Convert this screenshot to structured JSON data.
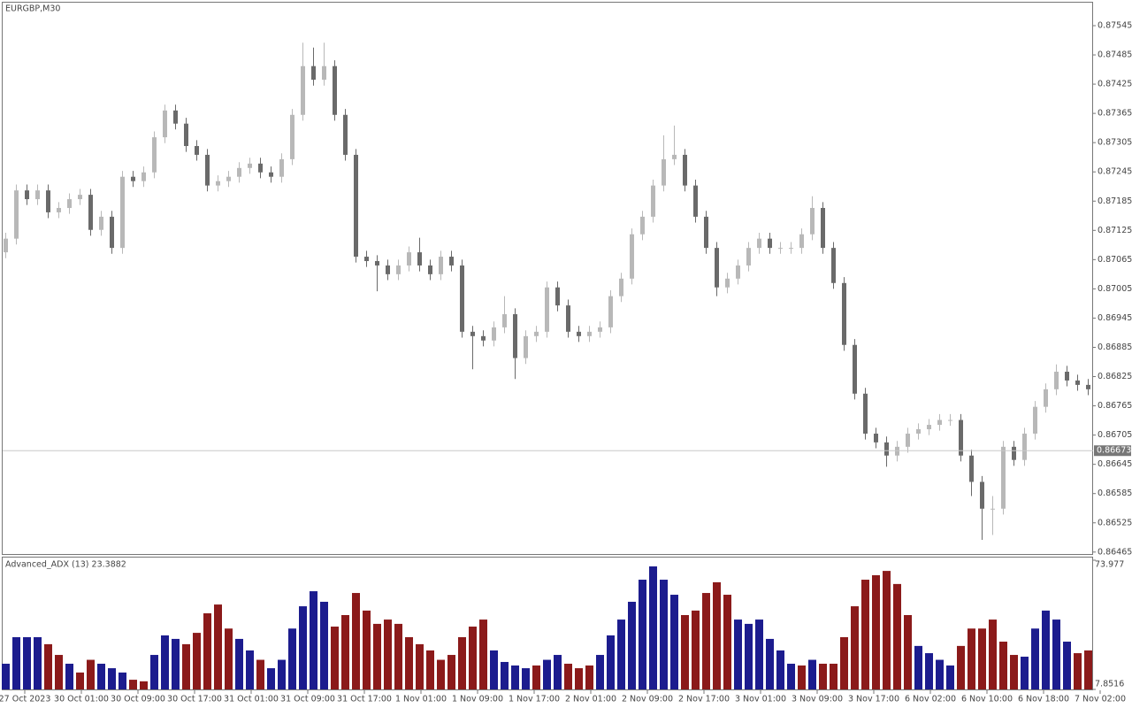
{
  "chart_data": [
    {
      "type": "candlestick",
      "title": "EURGBP,M30",
      "open": [
        0.8708,
        0.87108,
        0.87207,
        0.87189,
        0.87207,
        0.87162,
        0.87171,
        0.87189,
        0.87198,
        0.87126,
        0.87153,
        0.87089,
        0.87235,
        0.87226,
        0.87244,
        0.87316,
        0.87371,
        0.87344,
        0.87298,
        0.8728,
        0.87217,
        0.87226,
        0.87235,
        0.87253,
        0.87262,
        0.87244,
        0.87235,
        0.87271,
        0.87362,
        0.87462,
        0.87434,
        0.87462,
        0.87362,
        0.8728,
        0.87071,
        0.87062,
        0.87053,
        0.87035,
        0.87053,
        0.8708,
        0.87053,
        0.87035,
        0.87071,
        0.87053,
        0.86917,
        0.86908,
        0.86899,
        0.86926,
        0.86953,
        0.86863,
        0.86908,
        0.86917,
        0.87008,
        0.86971,
        0.86917,
        0.86908,
        0.86917,
        0.86926,
        0.8699,
        0.87026,
        0.87117,
        0.87153,
        0.87217,
        0.87271,
        0.8728,
        0.87217,
        0.87153,
        0.87089,
        0.87008,
        0.87026,
        0.87053,
        0.87089,
        0.87108,
        0.87089,
        0.87089,
        0.87089,
        0.87117,
        0.87171,
        0.87089,
        0.87017,
        0.8689,
        0.8679,
        0.86708,
        0.8669,
        0.86663,
        0.86681,
        0.86708,
        0.86717,
        0.86726,
        0.86736,
        0.86736,
        0.86663,
        0.86609,
        0.86554,
        0.86554,
        0.86681,
        0.86654,
        0.86708,
        0.86763,
        0.86799,
        0.86835,
        0.86817,
        0.86808
      ],
      "high": [
        0.8712,
        0.87219,
        0.87219,
        0.87219,
        0.87219,
        0.87183,
        0.87201,
        0.8721,
        0.8721,
        0.87165,
        0.87165,
        0.87247,
        0.87247,
        0.87256,
        0.87328,
        0.87383,
        0.87383,
        0.87356,
        0.8731,
        0.87292,
        0.87238,
        0.87247,
        0.87265,
        0.87274,
        0.87274,
        0.87256,
        0.87283,
        0.87374,
        0.8751,
        0.875,
        0.8751,
        0.87474,
        0.87374,
        0.87292,
        0.87083,
        0.87074,
        0.87065,
        0.87065,
        0.87092,
        0.8711,
        0.87065,
        0.87083,
        0.87083,
        0.87065,
        0.86929,
        0.8692,
        0.86938,
        0.8699,
        0.86965,
        0.8692,
        0.86929,
        0.8702,
        0.8702,
        0.86983,
        0.86929,
        0.86929,
        0.86938,
        0.87002,
        0.87038,
        0.87129,
        0.87165,
        0.87229,
        0.8732,
        0.8734,
        0.87292,
        0.87229,
        0.87165,
        0.87101,
        0.87038,
        0.87065,
        0.87101,
        0.8712,
        0.8712,
        0.87101,
        0.87101,
        0.87129,
        0.87195,
        0.87183,
        0.87101,
        0.87029,
        0.86902,
        0.86802,
        0.8672,
        0.86702,
        0.86693,
        0.8672,
        0.86729,
        0.86738,
        0.86748,
        0.86748,
        0.86748,
        0.86675,
        0.86621,
        0.8658,
        0.86693,
        0.86693,
        0.8672,
        0.86775,
        0.86811,
        0.8685,
        0.86847,
        0.86829,
        0.8682
      ],
      "low": [
        0.87068,
        0.87096,
        0.87177,
        0.87177,
        0.8715,
        0.8715,
        0.87159,
        0.87177,
        0.87114,
        0.87114,
        0.87077,
        0.87077,
        0.87214,
        0.87214,
        0.87232,
        0.87304,
        0.87332,
        0.87286,
        0.87268,
        0.87205,
        0.87205,
        0.87214,
        0.87223,
        0.87241,
        0.87232,
        0.87223,
        0.87223,
        0.87259,
        0.8735,
        0.87422,
        0.87422,
        0.8735,
        0.87268,
        0.87059,
        0.8705,
        0.87,
        0.87023,
        0.87023,
        0.87041,
        0.87041,
        0.87023,
        0.87023,
        0.87041,
        0.86905,
        0.8684,
        0.86887,
        0.86887,
        0.86914,
        0.8682,
        0.86851,
        0.86896,
        0.86905,
        0.86959,
        0.86905,
        0.86896,
        0.86896,
        0.86905,
        0.86914,
        0.86978,
        0.87014,
        0.87105,
        0.87141,
        0.87205,
        0.87259,
        0.87205,
        0.87141,
        0.87077,
        0.8699,
        0.86996,
        0.87014,
        0.87041,
        0.87077,
        0.87077,
        0.87077,
        0.87077,
        0.87077,
        0.87105,
        0.87077,
        0.87005,
        0.86878,
        0.86778,
        0.86696,
        0.86678,
        0.8664,
        0.86651,
        0.86669,
        0.86696,
        0.86705,
        0.86714,
        0.86724,
        0.86651,
        0.8658,
        0.8649,
        0.865,
        0.86542,
        0.86642,
        0.86642,
        0.86696,
        0.86751,
        0.86787,
        0.86805,
        0.86796,
        0.86787
      ],
      "close": [
        0.87108,
        0.87207,
        0.87189,
        0.87207,
        0.87162,
        0.87171,
        0.87189,
        0.87198,
        0.87126,
        0.87153,
        0.87089,
        0.87235,
        0.87226,
        0.87244,
        0.87316,
        0.87371,
        0.87344,
        0.87298,
        0.8728,
        0.87217,
        0.87226,
        0.87235,
        0.87253,
        0.87262,
        0.87244,
        0.87235,
        0.87271,
        0.87362,
        0.87462,
        0.87434,
        0.87462,
        0.87362,
        0.8728,
        0.87071,
        0.87062,
        0.87053,
        0.87035,
        0.87053,
        0.8708,
        0.87053,
        0.87035,
        0.87071,
        0.87053,
        0.86917,
        0.86908,
        0.86899,
        0.86926,
        0.86953,
        0.86863,
        0.86908,
        0.86917,
        0.87008,
        0.86971,
        0.86917,
        0.86908,
        0.86917,
        0.86926,
        0.8699,
        0.87026,
        0.87117,
        0.87153,
        0.87217,
        0.87271,
        0.8728,
        0.87217,
        0.87153,
        0.87089,
        0.87008,
        0.87026,
        0.87053,
        0.87089,
        0.87108,
        0.87089,
        0.87089,
        0.87089,
        0.87117,
        0.87171,
        0.87089,
        0.87017,
        0.8689,
        0.8679,
        0.86708,
        0.8669,
        0.86663,
        0.86681,
        0.86708,
        0.86717,
        0.86726,
        0.86736,
        0.86736,
        0.86663,
        0.86609,
        0.86554,
        0.86554,
        0.86681,
        0.86654,
        0.86708,
        0.86763,
        0.86799,
        0.86835,
        0.86817,
        0.86808,
        0.86799
      ],
      "up_color": "#b8b8b8",
      "down_color": "#6a6a6a",
      "ylim": [
        0.86461,
        0.87594
      ],
      "yticks": [
        0.87545,
        0.87485,
        0.87425,
        0.87365,
        0.87305,
        0.87245,
        0.87185,
        0.87125,
        0.87065,
        0.87005,
        0.86945,
        0.86885,
        0.86825,
        0.86765,
        0.86705,
        0.86645,
        0.86585,
        0.86525,
        0.86465
      ],
      "current_price": 0.86673,
      "time_labels": [
        "27 Oct 2023",
        "30 Oct 01:00",
        "30 Oct 09:00",
        "30 Oct 17:00",
        "31 Oct 01:00",
        "31 Oct 09:00",
        "31 Oct 17:00",
        "1 Nov 01:00",
        "1 Nov 09:00",
        "1 Nov 17:00",
        "2 Nov 01:00",
        "2 Nov 09:00",
        "2 Nov 17:00",
        "3 Nov 01:00",
        "3 Nov 09:00",
        "3 Nov 17:00",
        "6 Nov 02:00",
        "6 Nov 10:00",
        "6 Nov 18:00",
        "7 Nov 02:00"
      ]
    },
    {
      "type": "bar",
      "title": "Advanced_ADX (13) 23.3882",
      "values": [
        21,
        34.6,
        34.6,
        34.6,
        31,
        25.5,
        21,
        16.5,
        23,
        21,
        18.7,
        16.5,
        12.8,
        12,
        25.5,
        35.5,
        33.7,
        31,
        36.8,
        46.8,
        51.3,
        39,
        33.7,
        27.8,
        23,
        18.7,
        23,
        39,
        50.4,
        58.1,
        52.7,
        40,
        45.9,
        57.2,
        48.2,
        41.4,
        43.6,
        41.4,
        34.6,
        31,
        27.8,
        23,
        25.5,
        34.6,
        40,
        43.6,
        27.8,
        21.9,
        20.1,
        18.7,
        20.1,
        23,
        25.5,
        21,
        18.7,
        20.1,
        25.5,
        35.5,
        43.6,
        52.7,
        64,
        70.8,
        64,
        56.3,
        45.9,
        48.2,
        57.2,
        62.7,
        56.3,
        43.6,
        41.4,
        43.6,
        33.7,
        27.8,
        21,
        20.1,
        23,
        21,
        21,
        34.6,
        50.4,
        64,
        66.3,
        68.5,
        61.8,
        45.9,
        30.1,
        26.4,
        23,
        20.1,
        30.1,
        39,
        39,
        43.6,
        32.3,
        25.5,
        24.6,
        39,
        48.2,
        43.6,
        32.3,
        26.4,
        27.8
      ],
      "colors": [
        "#1c1c8e",
        "#1c1c8e",
        "#1c1c8e",
        "#1c1c8e",
        "#8b1a1a",
        "#8b1a1a",
        "#1c1c8e",
        "#8b1a1a",
        "#8b1a1a",
        "#1c1c8e",
        "#1c1c8e",
        "#1c1c8e",
        "#8b1a1a",
        "#8b1a1a",
        "#1c1c8e",
        "#1c1c8e",
        "#1c1c8e",
        "#8b1a1a",
        "#8b1a1a",
        "#8b1a1a",
        "#8b1a1a",
        "#8b1a1a",
        "#1c1c8e",
        "#1c1c8e",
        "#8b1a1a",
        "#1c1c8e",
        "#1c1c8e",
        "#1c1c8e",
        "#1c1c8e",
        "#1c1c8e",
        "#1c1c8e",
        "#8b1a1a",
        "#8b1a1a",
        "#8b1a1a",
        "#8b1a1a",
        "#8b1a1a",
        "#8b1a1a",
        "#8b1a1a",
        "#8b1a1a",
        "#8b1a1a",
        "#8b1a1a",
        "#8b1a1a",
        "#8b1a1a",
        "#8b1a1a",
        "#8b1a1a",
        "#8b1a1a",
        "#1c1c8e",
        "#1c1c8e",
        "#1c1c8e",
        "#1c1c8e",
        "#8b1a1a",
        "#1c1c8e",
        "#1c1c8e",
        "#8b1a1a",
        "#8b1a1a",
        "#8b1a1a",
        "#1c1c8e",
        "#1c1c8e",
        "#1c1c8e",
        "#1c1c8e",
        "#1c1c8e",
        "#1c1c8e",
        "#1c1c8e",
        "#1c1c8e",
        "#8b1a1a",
        "#8b1a1a",
        "#8b1a1a",
        "#8b1a1a",
        "#8b1a1a",
        "#1c1c8e",
        "#1c1c8e",
        "#1c1c8e",
        "#1c1c8e",
        "#1c1c8e",
        "#1c1c8e",
        "#8b1a1a",
        "#1c1c8e",
        "#8b1a1a",
        "#8b1a1a",
        "#8b1a1a",
        "#8b1a1a",
        "#8b1a1a",
        "#8b1a1a",
        "#8b1a1a",
        "#8b1a1a",
        "#8b1a1a",
        "#1c1c8e",
        "#1c1c8e",
        "#1c1c8e",
        "#1c1c8e",
        "#8b1a1a",
        "#8b1a1a",
        "#8b1a1a",
        "#8b1a1a",
        "#8b1a1a",
        "#8b1a1a",
        "#1c1c8e",
        "#1c1c8e",
        "#1c1c8e",
        "#1c1c8e",
        "#1c1c8e",
        "#8b1a1a",
        "#8b1a1a"
      ],
      "ylim": [
        7.8516,
        73.977
      ],
      "yticks": [
        73.977,
        7.8516
      ]
    }
  ]
}
